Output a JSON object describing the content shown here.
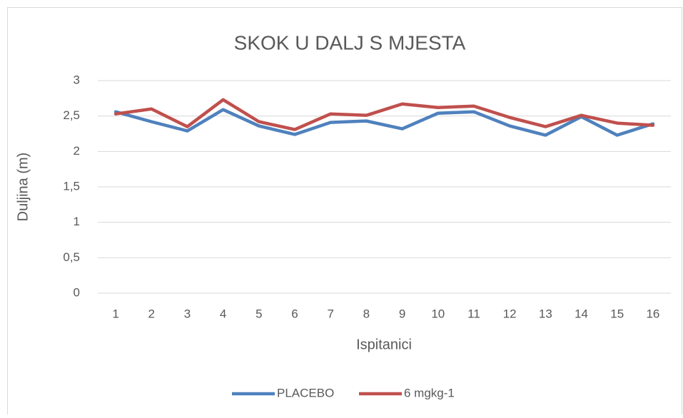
{
  "chart_data": {
    "type": "line",
    "title": "SKOK U DALJ S MJESTA",
    "x_label": "Ispitanici",
    "y_label": "Duljina (m)",
    "categories": [
      "1",
      "2",
      "3",
      "4",
      "5",
      "6",
      "7",
      "8",
      "9",
      "10",
      "11",
      "12",
      "13",
      "14",
      "15",
      "16"
    ],
    "series": [
      {
        "name": "PLACEBO",
        "color": "#4f81bd",
        "values": [
          2.56,
          2.42,
          2.29,
          2.59,
          2.36,
          2.24,
          2.41,
          2.43,
          2.32,
          2.54,
          2.56,
          2.36,
          2.23,
          2.49,
          2.23,
          2.39
        ]
      },
      {
        "name": "6 mgkg-1",
        "color": "#c0504d",
        "values": [
          2.53,
          2.6,
          2.35,
          2.73,
          2.42,
          2.31,
          2.53,
          2.51,
          2.67,
          2.62,
          2.64,
          2.48,
          2.35,
          2.51,
          2.4,
          2.37
        ]
      }
    ],
    "ylim": [
      0,
      3
    ],
    "yticks": [
      0,
      {
        "value": 0.5,
        "label": "0,5"
      },
      1,
      {
        "value": 1.5,
        "label": "1,5"
      },
      2,
      {
        "value": 2.5,
        "label": "2,5"
      },
      3
    ],
    "grid": true,
    "legend": "bottom"
  }
}
